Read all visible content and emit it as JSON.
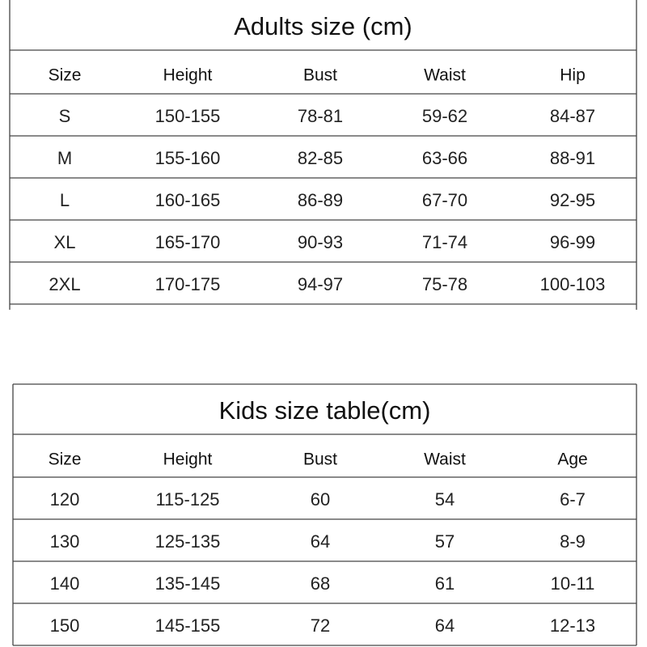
{
  "adults": {
    "title": "Adults size (cm)",
    "headers": [
      "Size",
      "Height",
      "Bust",
      "Waist",
      "Hip"
    ],
    "rows": [
      [
        "S",
        "150-155",
        "78-81",
        "59-62",
        "84-87"
      ],
      [
        "M",
        "155-160",
        "82-85",
        "63-66",
        "88-91"
      ],
      [
        "L",
        "160-165",
        "86-89",
        "67-70",
        "92-95"
      ],
      [
        "XL",
        "165-170",
        "90-93",
        "71-74",
        "96-99"
      ],
      [
        "2XL",
        "170-175",
        "94-97",
        "75-78",
        "100-103"
      ]
    ]
  },
  "kids": {
    "title": "Kids size table(cm)",
    "headers": [
      "Size",
      "Height",
      "Bust",
      "Waist",
      "Age"
    ],
    "rows": [
      [
        "120",
        "115-125",
        "60",
        "54",
        "6-7"
      ],
      [
        "130",
        "125-135",
        "64",
        "57",
        "8-9"
      ],
      [
        "140",
        "135-145",
        "68",
        "61",
        "10-11"
      ],
      [
        "150",
        "145-155",
        "72",
        "64",
        "12-13"
      ]
    ]
  }
}
